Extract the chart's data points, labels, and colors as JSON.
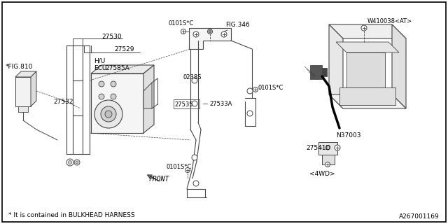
{
  "bg_color": "#ffffff",
  "border_color": "#000000",
  "footer_text": "* It is contained in BULKHEAD HARNESS",
  "part_id": "A267001169",
  "lc": "#444444",
  "tc": "#000000",
  "labels": {
    "fig810": "*FIG.810",
    "fig346": "FIG.346",
    "hu": "H/U",
    "ecu": "ECU",
    "27530": "27530",
    "27529": "27529",
    "27585a": "27585A",
    "27532": "27532",
    "27533a": "27533A",
    "27535": "27535",
    "0238s": "0238S",
    "0101sc": "0101S*C",
    "front": "FRONT",
    "w410038": "W410038<AT>",
    "n37003": "N37003",
    "27541d": "27541D",
    "4wd": "<4WD>"
  }
}
